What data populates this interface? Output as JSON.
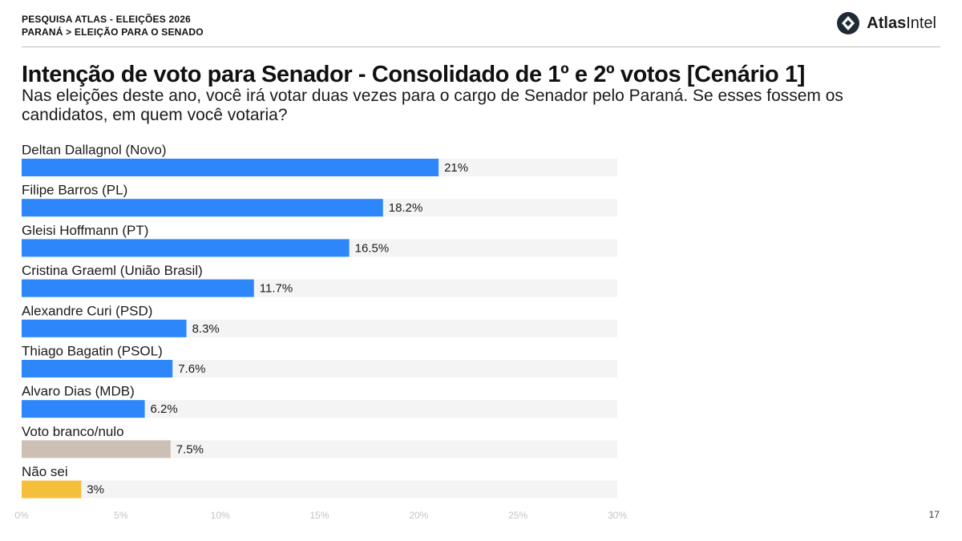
{
  "header": {
    "line1": "PESQUISA ATLAS - ELEIÇÕES 2026",
    "line2": "PARANÁ > ELEIÇÃO PARA O SENADO"
  },
  "brand": {
    "name_bold": "Atlas",
    "name_regular": "Intel",
    "icon": "atlasintel-logo-icon"
  },
  "title": "Intenção de voto para Senador - Consolidado de 1º e 2º votos [Cenário 1]",
  "subtitle": "Nas eleições deste ano, você irá votar duas vezes para o cargo de Senador pelo Paraná. Se esses fossem os candidatos, em quem você votaria?",
  "page_number": "17",
  "chart_data": {
    "type": "bar",
    "orientation": "horizontal",
    "categories": [
      "Deltan Dallagnol (Novo)",
      "Filipe Barros (PL)",
      "Gleisi Hoffmann (PT)",
      "Cristina Graeml (União Brasil)",
      "Alexandre Curi (PSD)",
      "Thiago Bagatin (PSOL)",
      "Alvaro Dias (MDB)",
      "Voto branco/nulo",
      "Não sei"
    ],
    "values": [
      21,
      18.2,
      16.5,
      11.7,
      8.3,
      7.6,
      6.2,
      7.5,
      3
    ],
    "value_labels": [
      "21%",
      "18.2%",
      "16.5%",
      "11.7%",
      "8.3%",
      "7.6%",
      "6.2%",
      "7.5%",
      "3%"
    ],
    "colors": [
      "#2d87fb",
      "#2d87fb",
      "#2d87fb",
      "#2d87fb",
      "#2d87fb",
      "#2d87fb",
      "#2d87fb",
      "#cbbfb6",
      "#f5bf3c"
    ],
    "track_color": "#f4f4f4",
    "xlim": [
      0,
      30
    ],
    "x_ticks": [
      0,
      5,
      10,
      15,
      20,
      25,
      30
    ],
    "x_tick_labels": [
      "0%",
      "5%",
      "10%",
      "15%",
      "20%",
      "25%",
      "30%"
    ],
    "grid": false,
    "legend": "none"
  }
}
